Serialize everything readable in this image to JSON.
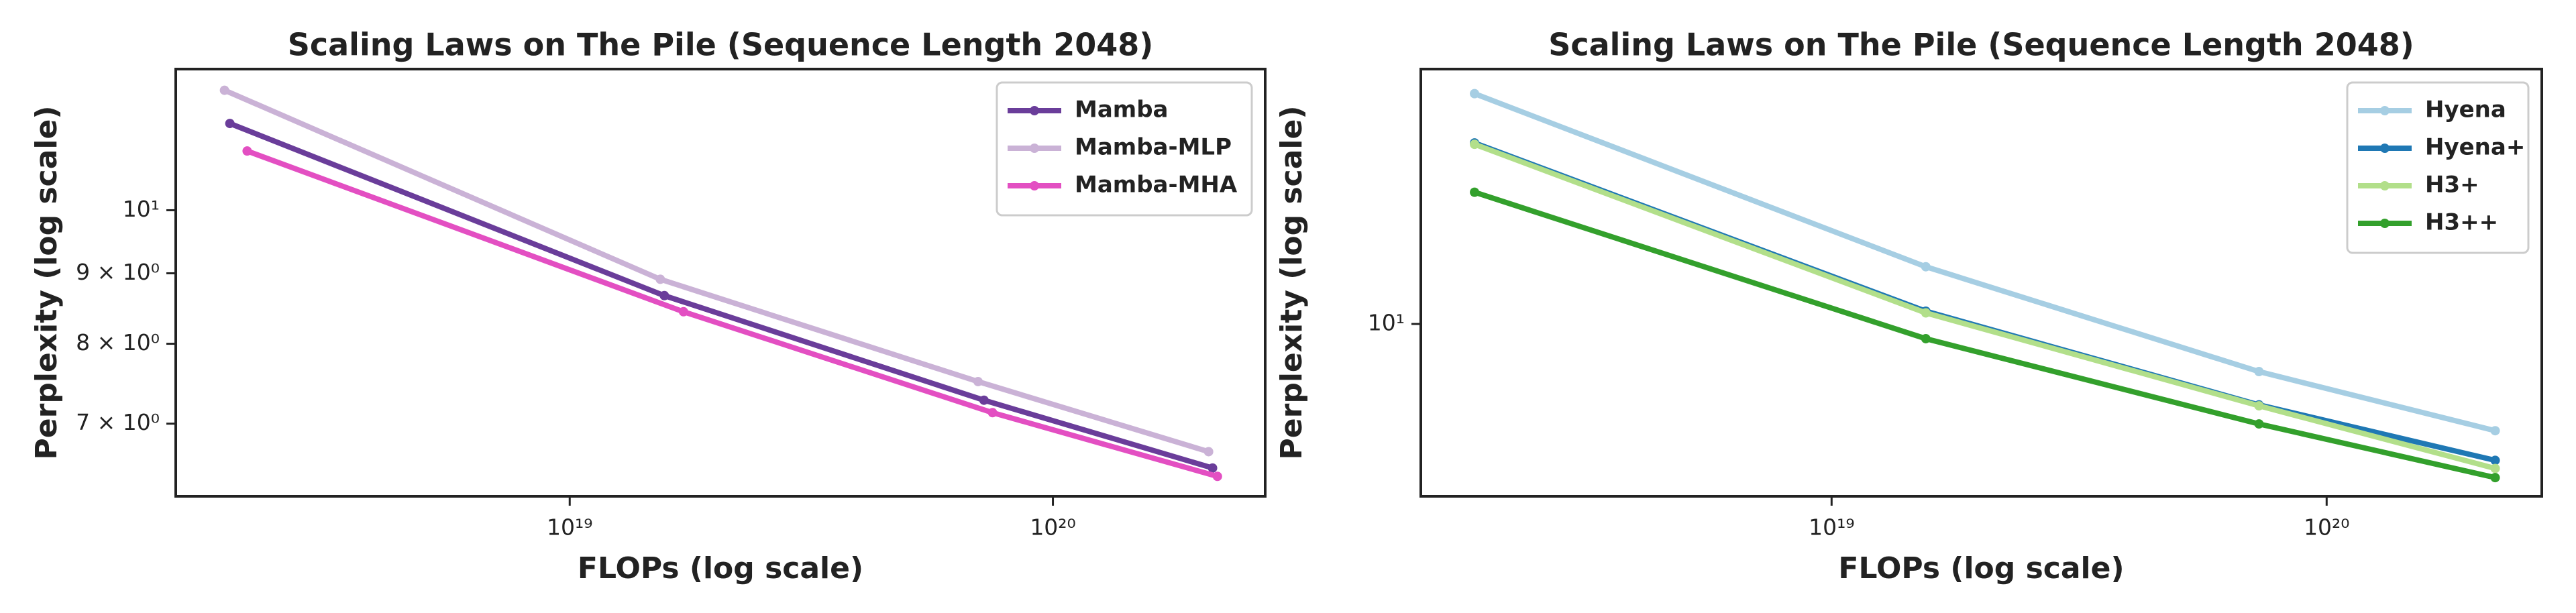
{
  "chart_data": [
    {
      "type": "line",
      "title": "Scaling Laws on The Pile (Sequence Length 2048)",
      "x_label": "FLOPs (log scale)",
      "y_label": "Perplexity (log scale)",
      "xscale": "log",
      "yscale": "log",
      "legend": "upper right",
      "xlim": [
        1.53e+18,
        2.75e+20
      ],
      "ylim": [
        6.2,
        12.66
      ],
      "xticks": [
        {
          "value": 1e+19,
          "label": "10¹⁹"
        },
        {
          "value": 1e+20,
          "label": "10²⁰"
        }
      ],
      "yticks": [
        {
          "value": 7,
          "label": "7 × 10⁰"
        },
        {
          "value": 8,
          "label": "8 × 10⁰"
        },
        {
          "value": 9,
          "label": "9 × 10⁰"
        },
        {
          "value": 10,
          "label": "10¹"
        }
      ],
      "series": [
        {
          "name": "Mamba",
          "color": "#6a3d9a",
          "x": [
            1.98e+18,
            1.57e+19,
            7.2e+19,
            2.14e+20
          ],
          "values": [
            11.56,
            8.67,
            7.28,
            6.5
          ]
        },
        {
          "name": "Mamba-MLP",
          "color": "#cab2d6",
          "x": [
            1.93e+18,
            1.54e+19,
            7e+19,
            2.1e+20
          ],
          "values": [
            12.22,
            8.91,
            7.51,
            6.68
          ]
        },
        {
          "name": "Mamba-MHA",
          "color": "#e34fc2",
          "x": [
            2.15e+18,
            1.72e+19,
            7.5e+19,
            2.19e+20
          ],
          "values": [
            11.04,
            8.44,
            7.13,
            6.41
          ]
        }
      ]
    },
    {
      "type": "line",
      "title": "Scaling Laws on The Pile (Sequence Length 2048)",
      "x_label": "FLOPs (log scale)",
      "y_label": "Perplexity (log scale)",
      "xscale": "log",
      "yscale": "log",
      "legend": "upper right",
      "xlim": [
        1.48e+18,
        2.72e+20
      ],
      "ylim": [
        8.18,
        13.46
      ],
      "xticks": [
        {
          "value": 1e+19,
          "label": "10¹⁹"
        },
        {
          "value": 1e+20,
          "label": "10²⁰"
        }
      ],
      "yticks": [
        {
          "value": 10,
          "label": "10¹"
        }
      ],
      "series": [
        {
          "name": "Hyena",
          "color": "#a6cee3",
          "x": [
            1.9e+18,
            1.55e+19,
            7.3e+19,
            2.19e+20
          ],
          "values": [
            13.08,
            10.69,
            9.46,
            8.83
          ]
        },
        {
          "name": "Hyena+",
          "color": "#1f78b4",
          "x": [
            1.9e+18,
            1.55e+19,
            7.3e+19,
            2.19e+20
          ],
          "values": [
            12.35,
            10.15,
            9.1,
            8.53
          ]
        },
        {
          "name": "H3+",
          "color": "#b2df8a",
          "x": [
            1.9e+18,
            1.55e+19,
            7.3e+19,
            2.19e+20
          ],
          "values": [
            12.33,
            10.13,
            9.09,
            8.45
          ]
        },
        {
          "name": "H3++",
          "color": "#33a02c",
          "x": [
            1.9e+18,
            1.55e+19,
            7.3e+19,
            2.19e+20
          ],
          "values": [
            11.66,
            9.83,
            8.9,
            8.36
          ]
        }
      ]
    }
  ]
}
